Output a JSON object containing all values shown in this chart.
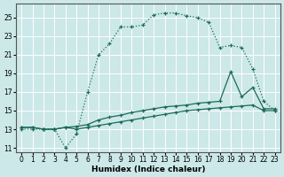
{
  "xlabel": "Humidex (Indice chaleur)",
  "bg_color": "#cce8e8",
  "grid_color": "#aacccc",
  "line_color": "#1a6b5a",
  "xlim": [
    -0.5,
    23.5
  ],
  "ylim": [
    10.5,
    26.5
  ],
  "xticks": [
    0,
    1,
    2,
    3,
    4,
    5,
    6,
    7,
    8,
    9,
    10,
    11,
    12,
    13,
    14,
    15,
    16,
    17,
    18,
    19,
    20,
    21,
    22,
    23
  ],
  "yticks": [
    11,
    13,
    15,
    17,
    19,
    21,
    23,
    25
  ],
  "line1_x": [
    0,
    1,
    2,
    3,
    4,
    5,
    6,
    7,
    8,
    9,
    10,
    11,
    12,
    13,
    14,
    15,
    16,
    17,
    18,
    19,
    20,
    21,
    22,
    23
  ],
  "line1_y": [
    13,
    13,
    13,
    13,
    11,
    12.5,
    17,
    21,
    22.2,
    24.0,
    24.0,
    24.2,
    25.3,
    25.5,
    25.5,
    25.2,
    25.0,
    24.5,
    21.8,
    22.0,
    21.8,
    19.5,
    16.0,
    15.0
  ],
  "line2_x": [
    0,
    1,
    2,
    3,
    4,
    5,
    6,
    7,
    8,
    9,
    10,
    11,
    12,
    13,
    14,
    15,
    16,
    17,
    18,
    19,
    20,
    21,
    22,
    23
  ],
  "line2_y": [
    13.2,
    13.2,
    13.0,
    13.0,
    13.2,
    13.3,
    13.5,
    14.0,
    14.3,
    14.5,
    14.8,
    15.0,
    15.2,
    15.4,
    15.5,
    15.6,
    15.8,
    15.9,
    16.0,
    19.2,
    16.5,
    17.5,
    15.2,
    15.2
  ],
  "line3_x": [
    0,
    1,
    2,
    3,
    4,
    5,
    6,
    7,
    8,
    9,
    10,
    11,
    12,
    13,
    14,
    15,
    16,
    17,
    18,
    19,
    20,
    21,
    22,
    23
  ],
  "line3_y": [
    13.2,
    13.2,
    13.0,
    13.0,
    13.2,
    13.0,
    13.2,
    13.4,
    13.6,
    13.8,
    14.0,
    14.2,
    14.4,
    14.6,
    14.8,
    15.0,
    15.1,
    15.2,
    15.3,
    15.4,
    15.5,
    15.6,
    15.0,
    15.0
  ]
}
